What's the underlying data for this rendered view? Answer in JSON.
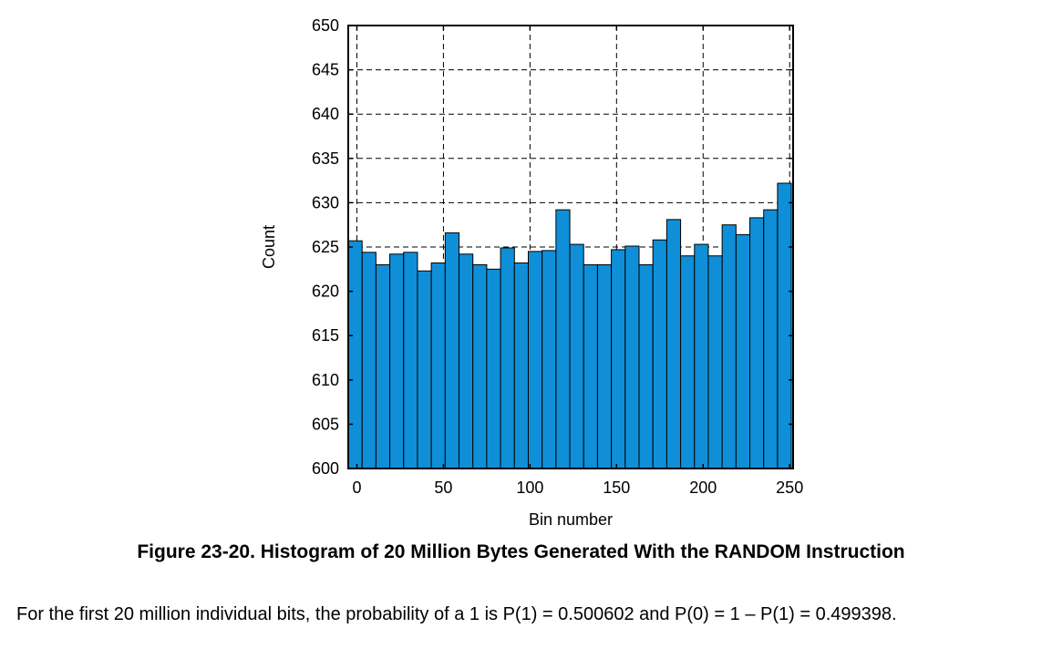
{
  "chart_data": {
    "type": "bar",
    "ylabel": "Count",
    "xlabel": "Bin number",
    "ylim": [
      600,
      650
    ],
    "xlim": [
      -5,
      252
    ],
    "yticks": [
      600,
      605,
      610,
      615,
      620,
      625,
      630,
      635,
      640,
      645,
      650
    ],
    "xticks": [
      0,
      50,
      100,
      150,
      200,
      250
    ],
    "grid": true,
    "bar_color": "#0f8fd8",
    "bin_width": 8,
    "bin_starts": [
      -5,
      3,
      11,
      19,
      27,
      35,
      43,
      51,
      59,
      67,
      75,
      83,
      91,
      99,
      107,
      115,
      123,
      131,
      139,
      147,
      155,
      163,
      171,
      179,
      187,
      195,
      203,
      211,
      219,
      227,
      235,
      243
    ],
    "values": [
      625.7,
      624.4,
      623.0,
      624.2,
      624.4,
      622.3,
      623.2,
      626.6,
      624.2,
      623.0,
      622.5,
      624.9,
      623.2,
      624.5,
      624.6,
      629.2,
      625.3,
      623.0,
      623.0,
      624.7,
      625.1,
      623.0,
      625.8,
      628.1,
      624.0,
      625.3,
      624.0,
      627.5,
      626.4,
      628.3,
      629.2,
      632.2
    ]
  },
  "caption": "Figure 23-20. Histogram of 20 Million Bytes Generated With the RANDOM Instruction",
  "paragraph": "For the first 20 million individual bits, the probability of a 1 is P(1) = 0.500602 and P(0) = 1 – P(1) = 0.499398."
}
